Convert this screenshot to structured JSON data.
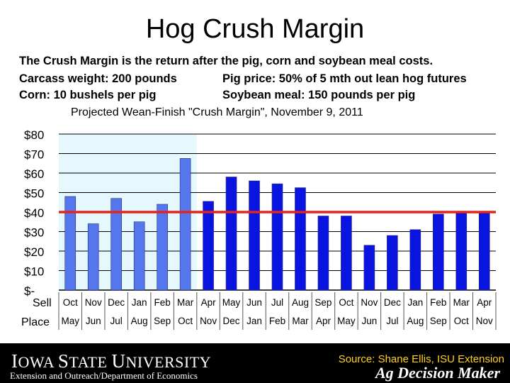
{
  "slide": {
    "title": "Hog Crush Margin",
    "line1": "The Crush Margin is the return after the pig, corn and soybean meal costs.",
    "line2_left": "Carcass weight:  200 pounds",
    "line2_right": "Pig price:  50% of 5 mth out lean hog futures",
    "line3_left": "Corn:  10 bushels per pig",
    "line3_right": "Soybean meal:  150 pounds per pig"
  },
  "chart_data": {
    "type": "bar",
    "title": "Projected Wean-Finish \"Crush Margin\", November 9, 2011",
    "row_labels": [
      "Sell",
      "Place"
    ],
    "sell_months": [
      "Oct",
      "Nov",
      "Dec",
      "Jan",
      "Feb",
      "Mar",
      "Apr",
      "May",
      "Jun",
      "Jul",
      "Aug",
      "Sep",
      "Oct",
      "Nov",
      "Dec",
      "Jan",
      "Feb",
      "Mar",
      "Apr"
    ],
    "place_months": [
      "May",
      "Jun",
      "Jul",
      "Aug",
      "Sep",
      "Oct",
      "Nov",
      "Dec",
      "Jan",
      "Feb",
      "Mar",
      "Apr",
      "May",
      "Jun",
      "Jul",
      "Aug",
      "Sep",
      "Oct",
      "Nov"
    ],
    "values": [
      48,
      34,
      47,
      35,
      44,
      67.5,
      45.5,
      58,
      56,
      54.5,
      52.5,
      38,
      38,
      23,
      28,
      31,
      39,
      39.5,
      39.5
    ],
    "bar_types": [
      "historical",
      "historical",
      "historical",
      "historical",
      "historical",
      "historical",
      "projected",
      "projected",
      "projected",
      "projected",
      "projected",
      "projected",
      "projected",
      "projected",
      "projected",
      "projected",
      "projected",
      "projected",
      "projected"
    ],
    "ylim": [
      0,
      80
    ],
    "yticks": [
      "$-",
      "$10",
      "$20",
      "$30",
      "$40",
      "$50",
      "$60",
      "$70",
      "$80"
    ],
    "reference_line": 40,
    "grid": true,
    "colors": {
      "historical_bar": "#5577ee",
      "projected_bar": "#0a14e0",
      "reference_line": "#e8221b",
      "shaded_region": "#e4f8fd"
    }
  },
  "footer": {
    "university_first": "I",
    "university_rest": "OWA ",
    "university_s": "S",
    "university_tate": "TATE ",
    "university_u": "U",
    "university_niv": "NIVERSITY",
    "department": "Extension and Outreach/Department of Economics",
    "source": "Source: Shane Ellis, ISU Extension",
    "brand": "Ag Decision Maker"
  }
}
